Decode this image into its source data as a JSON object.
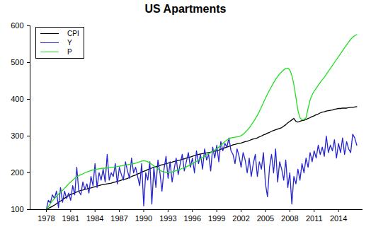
{
  "chart_data": {
    "type": "line",
    "title": "US Apartments",
    "x": [
      1978,
      1978.25,
      1978.5,
      1978.75,
      1979,
      1979.25,
      1979.5,
      1979.75,
      1980,
      1980.25,
      1980.5,
      1980.75,
      1981,
      1981.25,
      1981.5,
      1981.75,
      1982,
      1982.25,
      1982.5,
      1982.75,
      1983,
      1983.25,
      1983.5,
      1983.75,
      1984,
      1984.25,
      1984.5,
      1984.75,
      1985,
      1985.25,
      1985.5,
      1985.75,
      1986,
      1986.25,
      1986.5,
      1986.75,
      1987,
      1987.25,
      1987.5,
      1987.75,
      1988,
      1988.25,
      1988.5,
      1988.75,
      1989,
      1989.25,
      1989.5,
      1989.75,
      1990,
      1990.25,
      1990.5,
      1990.75,
      1991,
      1991.25,
      1991.5,
      1991.75,
      1992,
      1992.25,
      1992.5,
      1992.75,
      1993,
      1993.25,
      1993.5,
      1993.75,
      1994,
      1994.25,
      1994.5,
      1994.75,
      1995,
      1995.25,
      1995.5,
      1995.75,
      1996,
      1996.25,
      1996.5,
      1996.75,
      1997,
      1997.25,
      1997.5,
      1997.75,
      1998,
      1998.25,
      1998.5,
      1998.75,
      1999,
      1999.25,
      1999.5,
      1999.75,
      2000,
      2000.25,
      2000.5,
      2000.75,
      2001,
      2001.25,
      2001.5,
      2001.75,
      2002,
      2002.25,
      2002.5,
      2002.75,
      2003,
      2003.25,
      2003.5,
      2003.75,
      2004,
      2004.25,
      2004.5,
      2004.75,
      2005,
      2005.25,
      2005.5,
      2005.75,
      2006,
      2006.25,
      2006.5,
      2006.75,
      2007,
      2007.25,
      2007.5,
      2007.75,
      2008,
      2008.25,
      2008.5,
      2008.75,
      2009,
      2009.25,
      2009.5,
      2009.75,
      2010,
      2010.25,
      2010.5,
      2010.75,
      2011,
      2011.25,
      2011.5,
      2011.75,
      2012,
      2012.25,
      2012.5,
      2012.75,
      2013,
      2013.25,
      2013.5,
      2013.75,
      2014,
      2014.25,
      2014.5,
      2014.75,
      2015,
      2015.25,
      2015.5,
      2015.75,
      2016,
      2016.25
    ],
    "series": [
      {
        "name": "CPI",
        "color": "#000000",
        "values": [
          100,
          103,
          106,
          109,
          112,
          116,
          120,
          123,
          127,
          131,
          134,
          138,
          141,
          143,
          146,
          148,
          150,
          152,
          153,
          155,
          156,
          158,
          159,
          161,
          162,
          164,
          165,
          167,
          168,
          169,
          170,
          171,
          172,
          174,
          175,
          177,
          178,
          180,
          182,
          183,
          185,
          187,
          190,
          192,
          194,
          197,
          199,
          202,
          204,
          206,
          209,
          211,
          213,
          215,
          217,
          218,
          220,
          222,
          223,
          225,
          226,
          228,
          229,
          231,
          232,
          234,
          235,
          237,
          238,
          240,
          242,
          243,
          245,
          247,
          248,
          250,
          251,
          252,
          253,
          254,
          255,
          256,
          258,
          259,
          260,
          262,
          264,
          266,
          268,
          270,
          272,
          274,
          276,
          277,
          279,
          280,
          281,
          283,
          285,
          286,
          288,
          290,
          292,
          293,
          295,
          298,
          300,
          303,
          305,
          308,
          310,
          313,
          315,
          317,
          319,
          321,
          323,
          327,
          331,
          336,
          340,
          344,
          348,
          340,
          338,
          340,
          342,
          343,
          345,
          348,
          350,
          353,
          355,
          358,
          360,
          363,
          365,
          366,
          368,
          369,
          370,
          371,
          373,
          374,
          375,
          375,
          376,
          376,
          376,
          377,
          378,
          378,
          379,
          380
        ]
      },
      {
        "name": "Y",
        "color": "#2424d0",
        "values": [
          100,
          125,
          118,
          140,
          130,
          150,
          105,
          160,
          120,
          150,
          130,
          145,
          125,
          165,
          140,
          215,
          150,
          140,
          175,
          155,
          170,
          145,
          190,
          165,
          225,
          160,
          200,
          180,
          210,
          175,
          250,
          180,
          200,
          190,
          225,
          170,
          215,
          195,
          180,
          230,
          205,
          185,
          240,
          200,
          215,
          190,
          165,
          225,
          110,
          200,
          180,
          230,
          115,
          215,
          160,
          235,
          200,
          150,
          210,
          245,
          185,
          230,
          175,
          210,
          240,
          195,
          225,
          250,
          205,
          230,
          255,
          215,
          240,
          200,
          260,
          225,
          250,
          210,
          265,
          235,
          250,
          205,
          270,
          240,
          275,
          230,
          285,
          260,
          280,
          270,
          295,
          260,
          250,
          225,
          265,
          245,
          215,
          255,
          235,
          200,
          240,
          190,
          225,
          250,
          190,
          230,
          210,
          255,
          170,
          135,
          215,
          250,
          200,
          265,
          175,
          230,
          210,
          180,
          235,
          160,
          200,
          115,
          190,
          170,
          210,
          180,
          225,
          200,
          240,
          215,
          255,
          230,
          260,
          240,
          275,
          250,
          270,
          245,
          300,
          255,
          275,
          260,
          290,
          240,
          280,
          255,
          295,
          250,
          285,
          265,
          255,
          305,
          295,
          275
        ]
      },
      {
        "name": "P",
        "color": "#22dd22",
        "values": [
          100,
          108,
          116,
          124,
          130,
          136,
          142,
          148,
          152,
          158,
          164,
          170,
          175,
          180,
          185,
          190,
          192,
          195,
          197,
          200,
          202,
          204,
          206,
          208,
          209,
          210,
          211,
          212,
          212,
          213,
          213,
          214,
          214,
          215,
          216,
          217,
          218,
          219,
          220,
          221,
          222,
          223,
          224,
          225,
          226,
          228,
          230,
          232,
          233,
          232,
          230,
          227,
          223,
          219,
          215,
          211,
          207,
          204,
          202,
          201,
          200,
          201,
          202,
          204,
          206,
          208,
          210,
          212,
          214,
          216,
          219,
          222,
          225,
          228,
          231,
          235,
          238,
          241,
          245,
          249,
          252,
          255,
          258,
          262,
          266,
          270,
          275,
          280,
          285,
          289,
          292,
          295,
          296,
          297,
          298,
          299,
          301,
          305,
          310,
          316,
          322,
          330,
          338,
          347,
          356,
          367,
          379,
          391,
          403,
          414,
          425,
          435,
          445,
          454,
          462,
          469,
          475,
          480,
          484,
          485,
          480,
          465,
          440,
          405,
          370,
          350,
          344,
          345,
          350,
          375,
          398,
          412,
          422,
          430,
          438,
          446,
          453,
          460,
          468,
          476,
          484,
          492,
          500,
          508,
          516,
          524,
          532,
          540,
          548,
          556,
          563,
          569,
          573,
          576
        ]
      }
    ],
    "xlim": [
      1976,
      2017
    ],
    "xticks": [
      1978,
      1981,
      1984,
      1987,
      1990,
      1993,
      1996,
      1999,
      2002,
      2005,
      2008,
      2011,
      2014
    ],
    "ylim": [
      100,
      600
    ],
    "yticks": [
      100,
      200,
      300,
      400,
      500,
      600
    ],
    "grid": false,
    "legend": "top-left"
  }
}
